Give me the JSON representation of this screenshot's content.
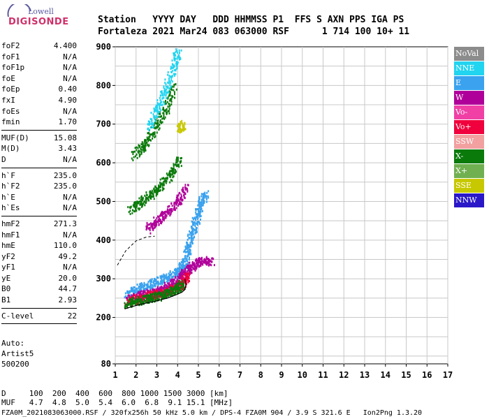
{
  "logo": {
    "top": "Lowell",
    "bottom": "DIGISONDE"
  },
  "header": {
    "labels": "Station   YYYY DAY   DDD HHMMSS P1  FFS S AXN PPS IGA PS",
    "values": "Fortaleza 2021 Mar24 083 063000 RSF      1 714 100 10+ 11"
  },
  "params": {
    "group1": [
      {
        "label": "foF2",
        "value": "4.400"
      },
      {
        "label": "foF1",
        "value": "N/A"
      },
      {
        "label": "foF1p",
        "value": "N/A"
      },
      {
        "label": "foE",
        "value": "N/A"
      },
      {
        "label": "foEp",
        "value": "0.40"
      },
      {
        "label": "fxI",
        "value": "4.90"
      },
      {
        "label": "foEs",
        "value": "N/A"
      },
      {
        "label": "fmin",
        "value": "1.70"
      }
    ],
    "group2": [
      {
        "label": "MUF(D)",
        "value": "15.08"
      },
      {
        "label": "M(D)",
        "value": "3.43"
      },
      {
        "label": "D",
        "value": "N/A"
      }
    ],
    "group3": [
      {
        "label": "h`F",
        "value": "235.0"
      },
      {
        "label": "h`F2",
        "value": "235.0"
      },
      {
        "label": "h`E",
        "value": "N/A"
      },
      {
        "label": "h`Es",
        "value": "N/A"
      }
    ],
    "group4": [
      {
        "label": "hmF2",
        "value": "271.3"
      },
      {
        "label": "hmF1",
        "value": "N/A"
      },
      {
        "label": "hmE",
        "value": "110.0"
      },
      {
        "label": "yF2",
        "value": "49.2"
      },
      {
        "label": "yF1",
        "value": "N/A"
      },
      {
        "label": "yE",
        "value": "20.0"
      },
      {
        "label": "B0",
        "value": "44.7"
      },
      {
        "label": "B1",
        "value": "2.93"
      }
    ],
    "group5": [
      {
        "label": "C-level",
        "value": "22"
      }
    ]
  },
  "auto": {
    "line1": "Auto:",
    "line2": "Artist5",
    "line3": "500200"
  },
  "legend": [
    {
      "label": "NoVal",
      "color": "#8c8c8c"
    },
    {
      "label": "NNE",
      "color": "#21d4f0"
    },
    {
      "label": "E",
      "color": "#3aa2ee"
    },
    {
      "label": "W",
      "color": "#b0009a"
    },
    {
      "label": "Vo-",
      "color": "#f040a6"
    },
    {
      "label": "Vo+",
      "color": "#f0003c"
    },
    {
      "label": "SSW",
      "color": "#f2a0a0"
    },
    {
      "label": "X-",
      "color": "#0a7a0a"
    },
    {
      "label": "X+",
      "color": "#70b050"
    },
    {
      "label": "SSE",
      "color": "#c8c800"
    },
    {
      "label": "NNW",
      "color": "#2a18c8"
    }
  ],
  "bottom": {
    "row1": "D     100  200  400  600  800 1000 1500 3000 [km]",
    "row2": "MUF   4.7  4.8  5.0  5.4  6.0  6.8  9.1 15.1 [MHz]"
  },
  "footer": "FZA0M_2021083063000.RSF / 320fx256h 50 kHz 5.0 km / DPS-4 FZA0M 904 / 3.9 S 321.6 E   Ion2Png 1.3.20",
  "chart_data": {
    "type": "scatter",
    "title": "",
    "xlabel": "",
    "ylabel": "",
    "xlim": [
      1,
      17
    ],
    "ylim": [
      80,
      900
    ],
    "x_ticks": [
      1,
      2,
      3,
      4,
      5,
      6,
      7,
      8,
      9,
      10,
      11,
      12,
      13,
      14,
      15,
      16,
      17
    ],
    "y_ticks": [
      80,
      200,
      300,
      400,
      500,
      600,
      700,
      800,
      900
    ],
    "grid": true,
    "profile_line": {
      "x": [
        1.45,
        1.8,
        2.4,
        3.0,
        3.5,
        3.9,
        4.2,
        4.35,
        4.4,
        4.35
      ],
      "y": [
        222,
        228,
        236,
        243,
        250,
        258,
        265,
        272,
        285,
        300
      ]
    },
    "dashed_line": {
      "x": [
        1.1,
        1.5,
        2.0,
        2.5,
        2.9
      ],
      "y": [
        335,
        372,
        398,
        408,
        410
      ]
    },
    "echo_traces": [
      {
        "series": "E",
        "x": [
          1.5,
          2.0,
          2.5,
          3.0,
          3.5,
          4.0,
          4.3,
          4.5,
          4.7,
          4.9,
          5.1,
          5.3
        ],
        "y": [
          262,
          275,
          285,
          295,
          305,
          320,
          345,
          380,
          420,
          460,
          500,
          520
        ]
      },
      {
        "series": "W",
        "x": [
          1.6,
          2.2,
          2.8,
          3.3,
          3.8,
          4.2,
          4.5,
          4.8,
          5.2,
          5.6
        ],
        "y": [
          248,
          258,
          266,
          275,
          290,
          310,
          325,
          340,
          350,
          345
        ]
      },
      {
        "series": "Vo+",
        "x": [
          1.6,
          2.1,
          2.6,
          3.1,
          3.6,
          4.0,
          4.3,
          4.4
        ],
        "y": [
          244,
          250,
          257,
          264,
          272,
          282,
          295,
          310
        ]
      },
      {
        "series": "X-",
        "x": [
          1.5,
          2.0,
          2.5,
          3.0,
          3.5,
          3.9,
          4.2
        ],
        "y": [
          238,
          244,
          250,
          256,
          265,
          275,
          288
        ]
      },
      {
        "series": "X-",
        "x": [
          1.7,
          2.2,
          2.7,
          3.2,
          3.7,
          4.1
        ],
        "y": [
          480,
          500,
          520,
          545,
          575,
          610
        ]
      },
      {
        "series": "X-",
        "x": [
          1.9,
          2.4,
          2.9,
          3.4,
          3.8
        ],
        "y": [
          620,
          650,
          690,
          740,
          800
        ]
      },
      {
        "series": "NNE",
        "x": [
          2.6,
          3.0,
          3.4,
          3.8,
          4.0
        ],
        "y": [
          690,
          740,
          790,
          850,
          890
        ]
      },
      {
        "series": "SSE",
        "x": [
          4.1,
          4.2
        ],
        "y": [
          690,
          700
        ]
      },
      {
        "series": "W",
        "x": [
          2.5,
          3.0,
          3.5,
          4.0,
          4.4
        ],
        "y": [
          430,
          452,
          474,
          500,
          540
        ]
      }
    ]
  }
}
